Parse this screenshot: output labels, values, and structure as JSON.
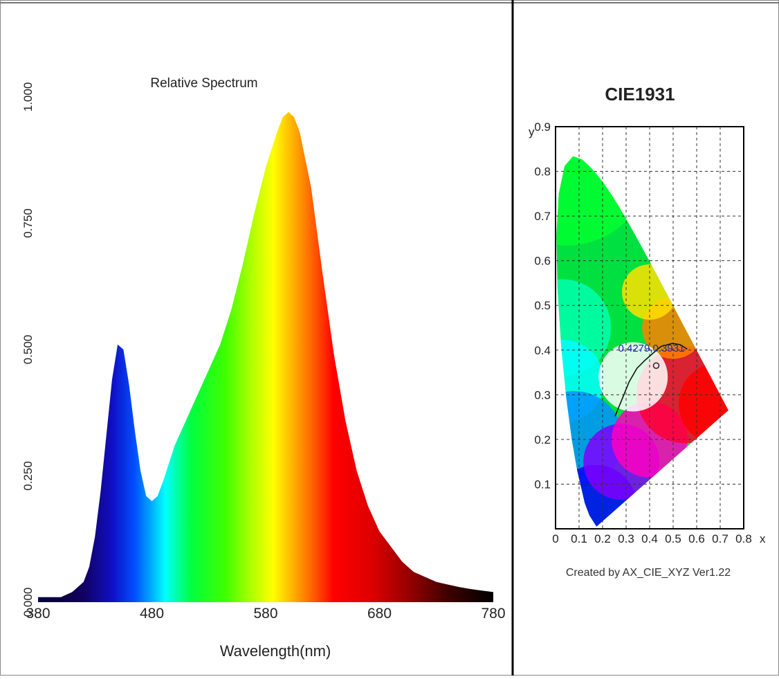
{
  "chart_data": [
    {
      "type": "area",
      "title": "Relative Spectrum",
      "xlabel": "Wavelength(nm)",
      "ylabel": "",
      "xlim": [
        380,
        780
      ],
      "ylim": [
        0,
        1.0
      ],
      "x_ticks": [
        "380",
        "480",
        "580",
        "680",
        "780"
      ],
      "y_ticks": [
        "0.000",
        "0.250",
        "0.500",
        "0.750",
        "1.000"
      ],
      "fill": "visible-spectrum gradient",
      "series": [
        {
          "x": [
            380,
            400,
            410,
            420,
            425,
            430,
            435,
            440,
            445,
            450,
            455,
            460,
            465,
            470,
            475,
            480,
            485,
            490,
            500,
            510,
            520,
            530,
            540,
            550,
            560,
            570,
            580,
            590,
            595,
            600,
            605,
            610,
            620,
            630,
            640,
            650,
            660,
            670,
            680,
            690,
            700,
            710,
            720,
            730,
            740,
            750,
            760,
            770,
            780
          ],
          "values": [
            0.01,
            0.01,
            0.02,
            0.04,
            0.07,
            0.13,
            0.22,
            0.33,
            0.44,
            0.51,
            0.5,
            0.43,
            0.34,
            0.26,
            0.21,
            0.2,
            0.21,
            0.24,
            0.31,
            0.36,
            0.41,
            0.46,
            0.51,
            0.58,
            0.67,
            0.77,
            0.86,
            0.93,
            0.96,
            0.97,
            0.96,
            0.93,
            0.82,
            0.65,
            0.49,
            0.36,
            0.26,
            0.19,
            0.14,
            0.11,
            0.08,
            0.06,
            0.05,
            0.04,
            0.035,
            0.03,
            0.026,
            0.023,
            0.02
          ]
        }
      ]
    },
    {
      "type": "scatter",
      "title": "CIE1931",
      "xlabel": "x",
      "ylabel": "y",
      "xlim": [
        0,
        0.8
      ],
      "ylim": [
        0,
        0.9
      ],
      "x_ticks": [
        "0",
        "0.1",
        "0.2",
        "0.3",
        "0.4",
        "0.5",
        "0.6",
        "0.7",
        "0.8"
      ],
      "y_ticks": [
        "0.1",
        "0.2",
        "0.3",
        "0.4",
        "0.5",
        "0.6",
        "0.7",
        "0.8",
        "0.9"
      ],
      "grid": true,
      "point": {
        "x": 0.4279,
        "y": 0.3931,
        "label": "0.4279,0.3931"
      },
      "footer": "Created by AX_CIE_XYZ Ver1.22",
      "annotation_color": "#2222aa"
    }
  ]
}
